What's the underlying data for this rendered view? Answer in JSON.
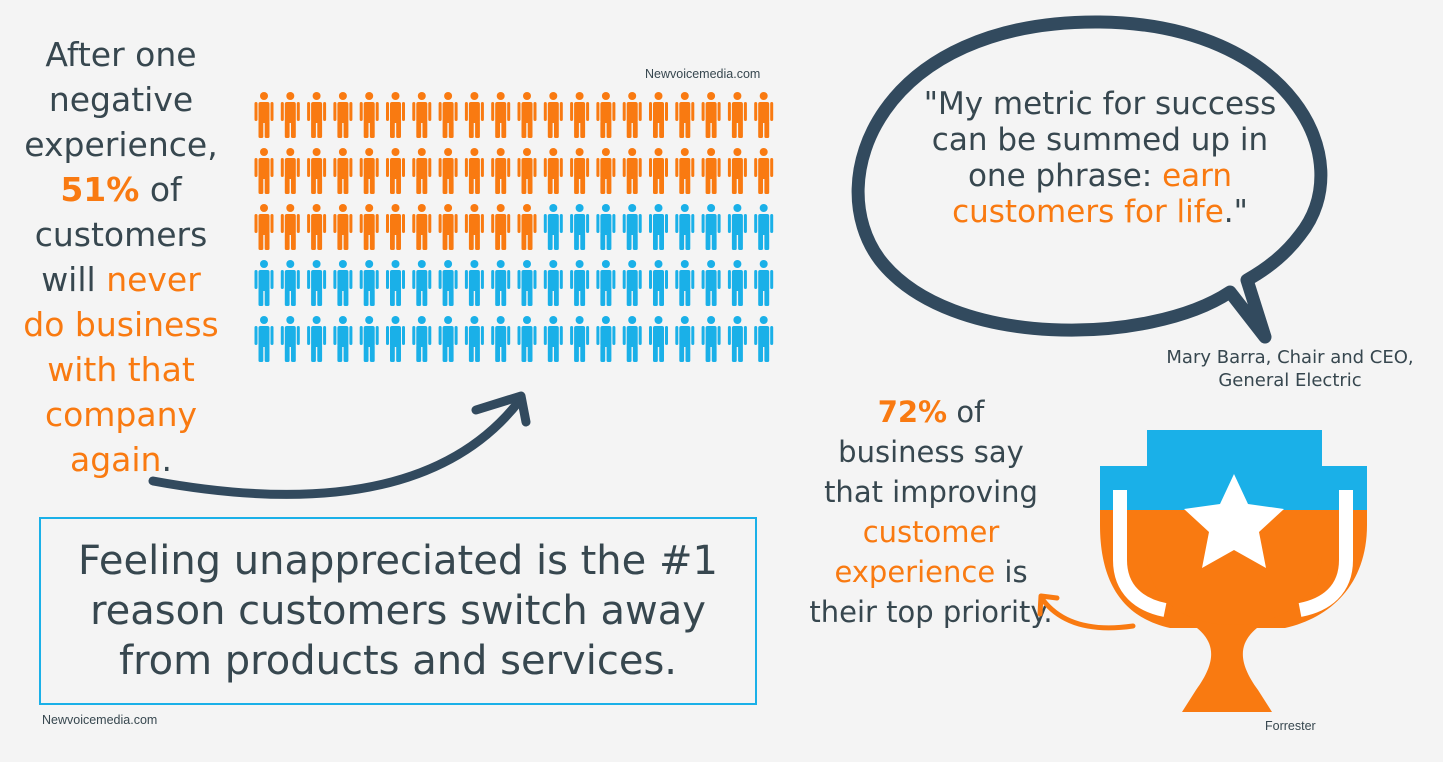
{
  "left_stat": {
    "line1": "After one",
    "line2": "negative",
    "line3": "experience,",
    "percent": "51%",
    "of": " of",
    "customers": "customers",
    "will": "will ",
    "never": "never",
    "do_business": "do business",
    "with_that": "with that",
    "company": "company",
    "again": "again",
    "period": ".",
    "source": "Newvoicemedia.com"
  },
  "people_grid": {
    "rows": 5,
    "cols": 20,
    "orange_count": 51,
    "orange_color": "#f97a11",
    "blue_color": "#1ab0e8"
  },
  "feeling": {
    "text": "Feeling unappreciated is the #1 reason customers switch away from products and services.",
    "source": "Newvoicemedia.com"
  },
  "quote": {
    "part1": "\"My metric for success can be summed up in one phrase: ",
    "highlight": "earn customers for life",
    "end": ".\"",
    "attribution": "Mary Barra, Chair and CEO, General Electric"
  },
  "right_stat": {
    "percent": "72%",
    "of": " of",
    "text1": "business say that improving",
    "highlight": "customer experience",
    "is": " is",
    "text2": "their top priority.",
    "source": "Forrester"
  },
  "colors": {
    "orange": "#f97a11",
    "blue": "#1ab0e8",
    "dark": "#324a5e"
  }
}
